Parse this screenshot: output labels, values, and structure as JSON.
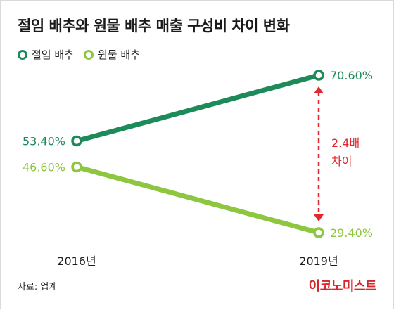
{
  "chart_data": {
    "type": "line",
    "title": "절임 배추와 원물 배추 매출 구성비 차이 변화",
    "categories": [
      "2016년",
      "2019년"
    ],
    "series": [
      {
        "name": "절임 배추",
        "values": [
          53.4,
          70.6
        ],
        "labels": [
          "53.40%",
          "70.60%"
        ],
        "color": "#1d8a5a"
      },
      {
        "name": "원물 배추",
        "values": [
          46.6,
          29.4
        ],
        "labels": [
          "46.60%",
          "29.40%"
        ],
        "color": "#8dc63f"
      }
    ],
    "annotation": {
      "line1": "2.4배",
      "line2": "차이",
      "color": "#e0292f"
    },
    "legend_position": "top-left",
    "grid": false
  },
  "source": "자료: 업계",
  "logo": "이코노미스트"
}
